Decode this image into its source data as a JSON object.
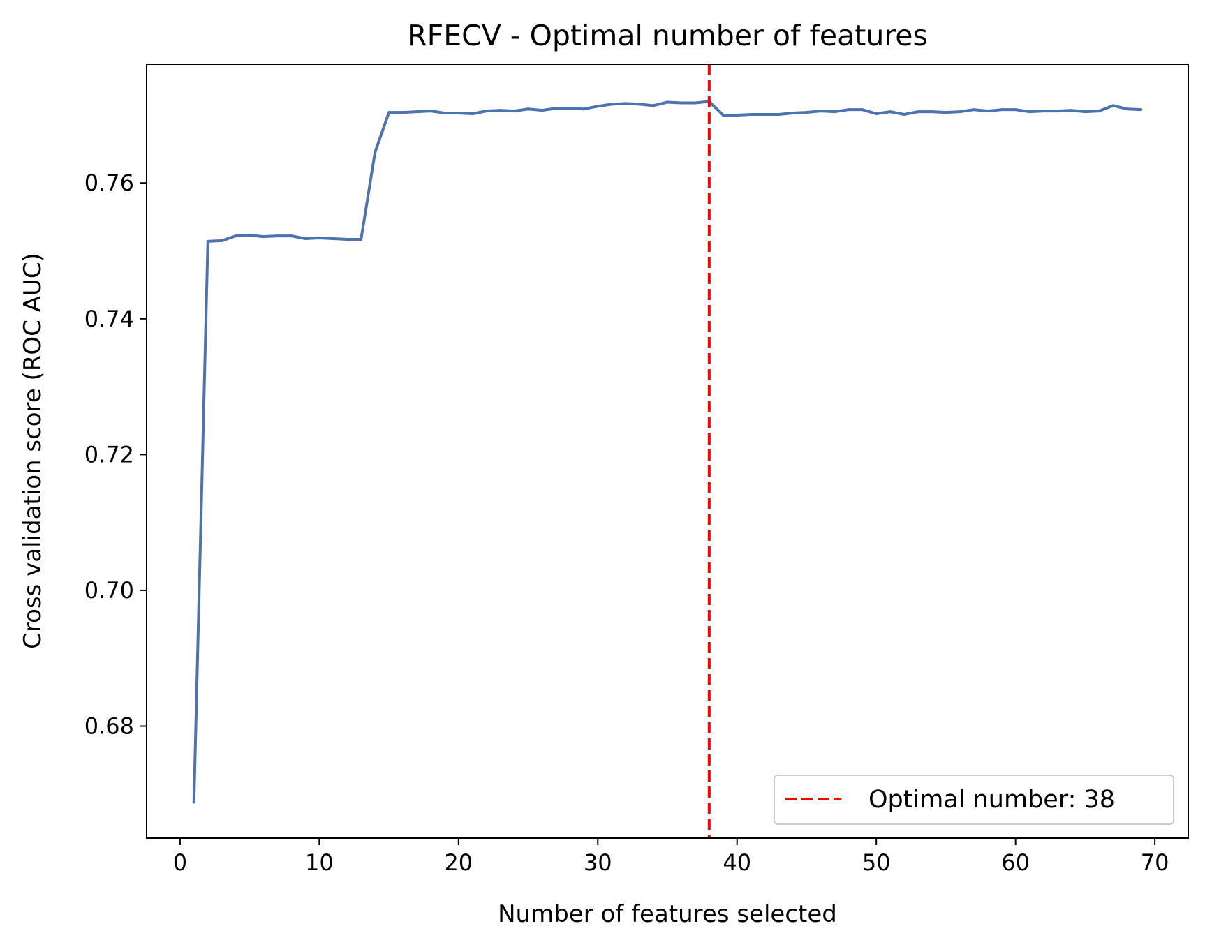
{
  "chart_data": {
    "type": "line",
    "title": "RFECV - Optimal number of features",
    "xlabel": "Number of features selected",
    "ylabel": "Cross validation score (ROC AUC)",
    "xlim": [
      -2.4,
      72.4
    ],
    "ylim": [
      0.6635,
      0.7775
    ],
    "xticks": [
      0,
      10,
      20,
      30,
      40,
      50,
      60,
      70
    ],
    "yticks": [
      0.68,
      0.7,
      0.72,
      0.74,
      0.76
    ],
    "xtick_labels": [
      "0",
      "10",
      "20",
      "30",
      "40",
      "50",
      "60",
      "70"
    ],
    "ytick_labels": [
      "0.68",
      "0.70",
      "0.72",
      "0.74",
      "0.76"
    ],
    "grid": false,
    "legend_position": "lower-right",
    "series": [
      {
        "color": "#4c72b0",
        "x": [
          1,
          2,
          3,
          4,
          5,
          6,
          7,
          8,
          9,
          10,
          11,
          12,
          13,
          14,
          15,
          16,
          17,
          18,
          19,
          20,
          21,
          22,
          23,
          24,
          25,
          26,
          27,
          28,
          29,
          30,
          31,
          32,
          33,
          34,
          35,
          36,
          37,
          38,
          39,
          40,
          41,
          42,
          43,
          44,
          45,
          46,
          47,
          48,
          49,
          50,
          51,
          52,
          53,
          54,
          55,
          56,
          57,
          58,
          59,
          60,
          61,
          62,
          63,
          64,
          65,
          66,
          67,
          68,
          69
        ],
        "y": [
          0.6688,
          0.7514,
          0.7515,
          0.7522,
          0.7523,
          0.7521,
          0.7522,
          0.7522,
          0.7518,
          0.7519,
          0.7518,
          0.7517,
          0.7517,
          0.7645,
          0.7704,
          0.7704,
          0.7705,
          0.7706,
          0.7703,
          0.7703,
          0.7702,
          0.7706,
          0.7707,
          0.7706,
          0.7709,
          0.7707,
          0.771,
          0.771,
          0.7709,
          0.7713,
          0.7716,
          0.7717,
          0.7716,
          0.7714,
          0.7719,
          0.7718,
          0.7718,
          0.772,
          0.77,
          0.77,
          0.7701,
          0.7701,
          0.7701,
          0.7703,
          0.7704,
          0.7706,
          0.7705,
          0.7708,
          0.7708,
          0.7702,
          0.7705,
          0.7701,
          0.7705,
          0.7705,
          0.7704,
          0.7705,
          0.7708,
          0.7706,
          0.7708,
          0.7708,
          0.7705,
          0.7706,
          0.7706,
          0.7707,
          0.7705,
          0.7706,
          0.7714,
          0.7709,
          0.7708
        ]
      }
    ],
    "annotations": [
      {
        "type": "vline",
        "x": 38,
        "style": "dashed",
        "color": "#ff0000",
        "label": "Optimal number: 38"
      }
    ]
  }
}
